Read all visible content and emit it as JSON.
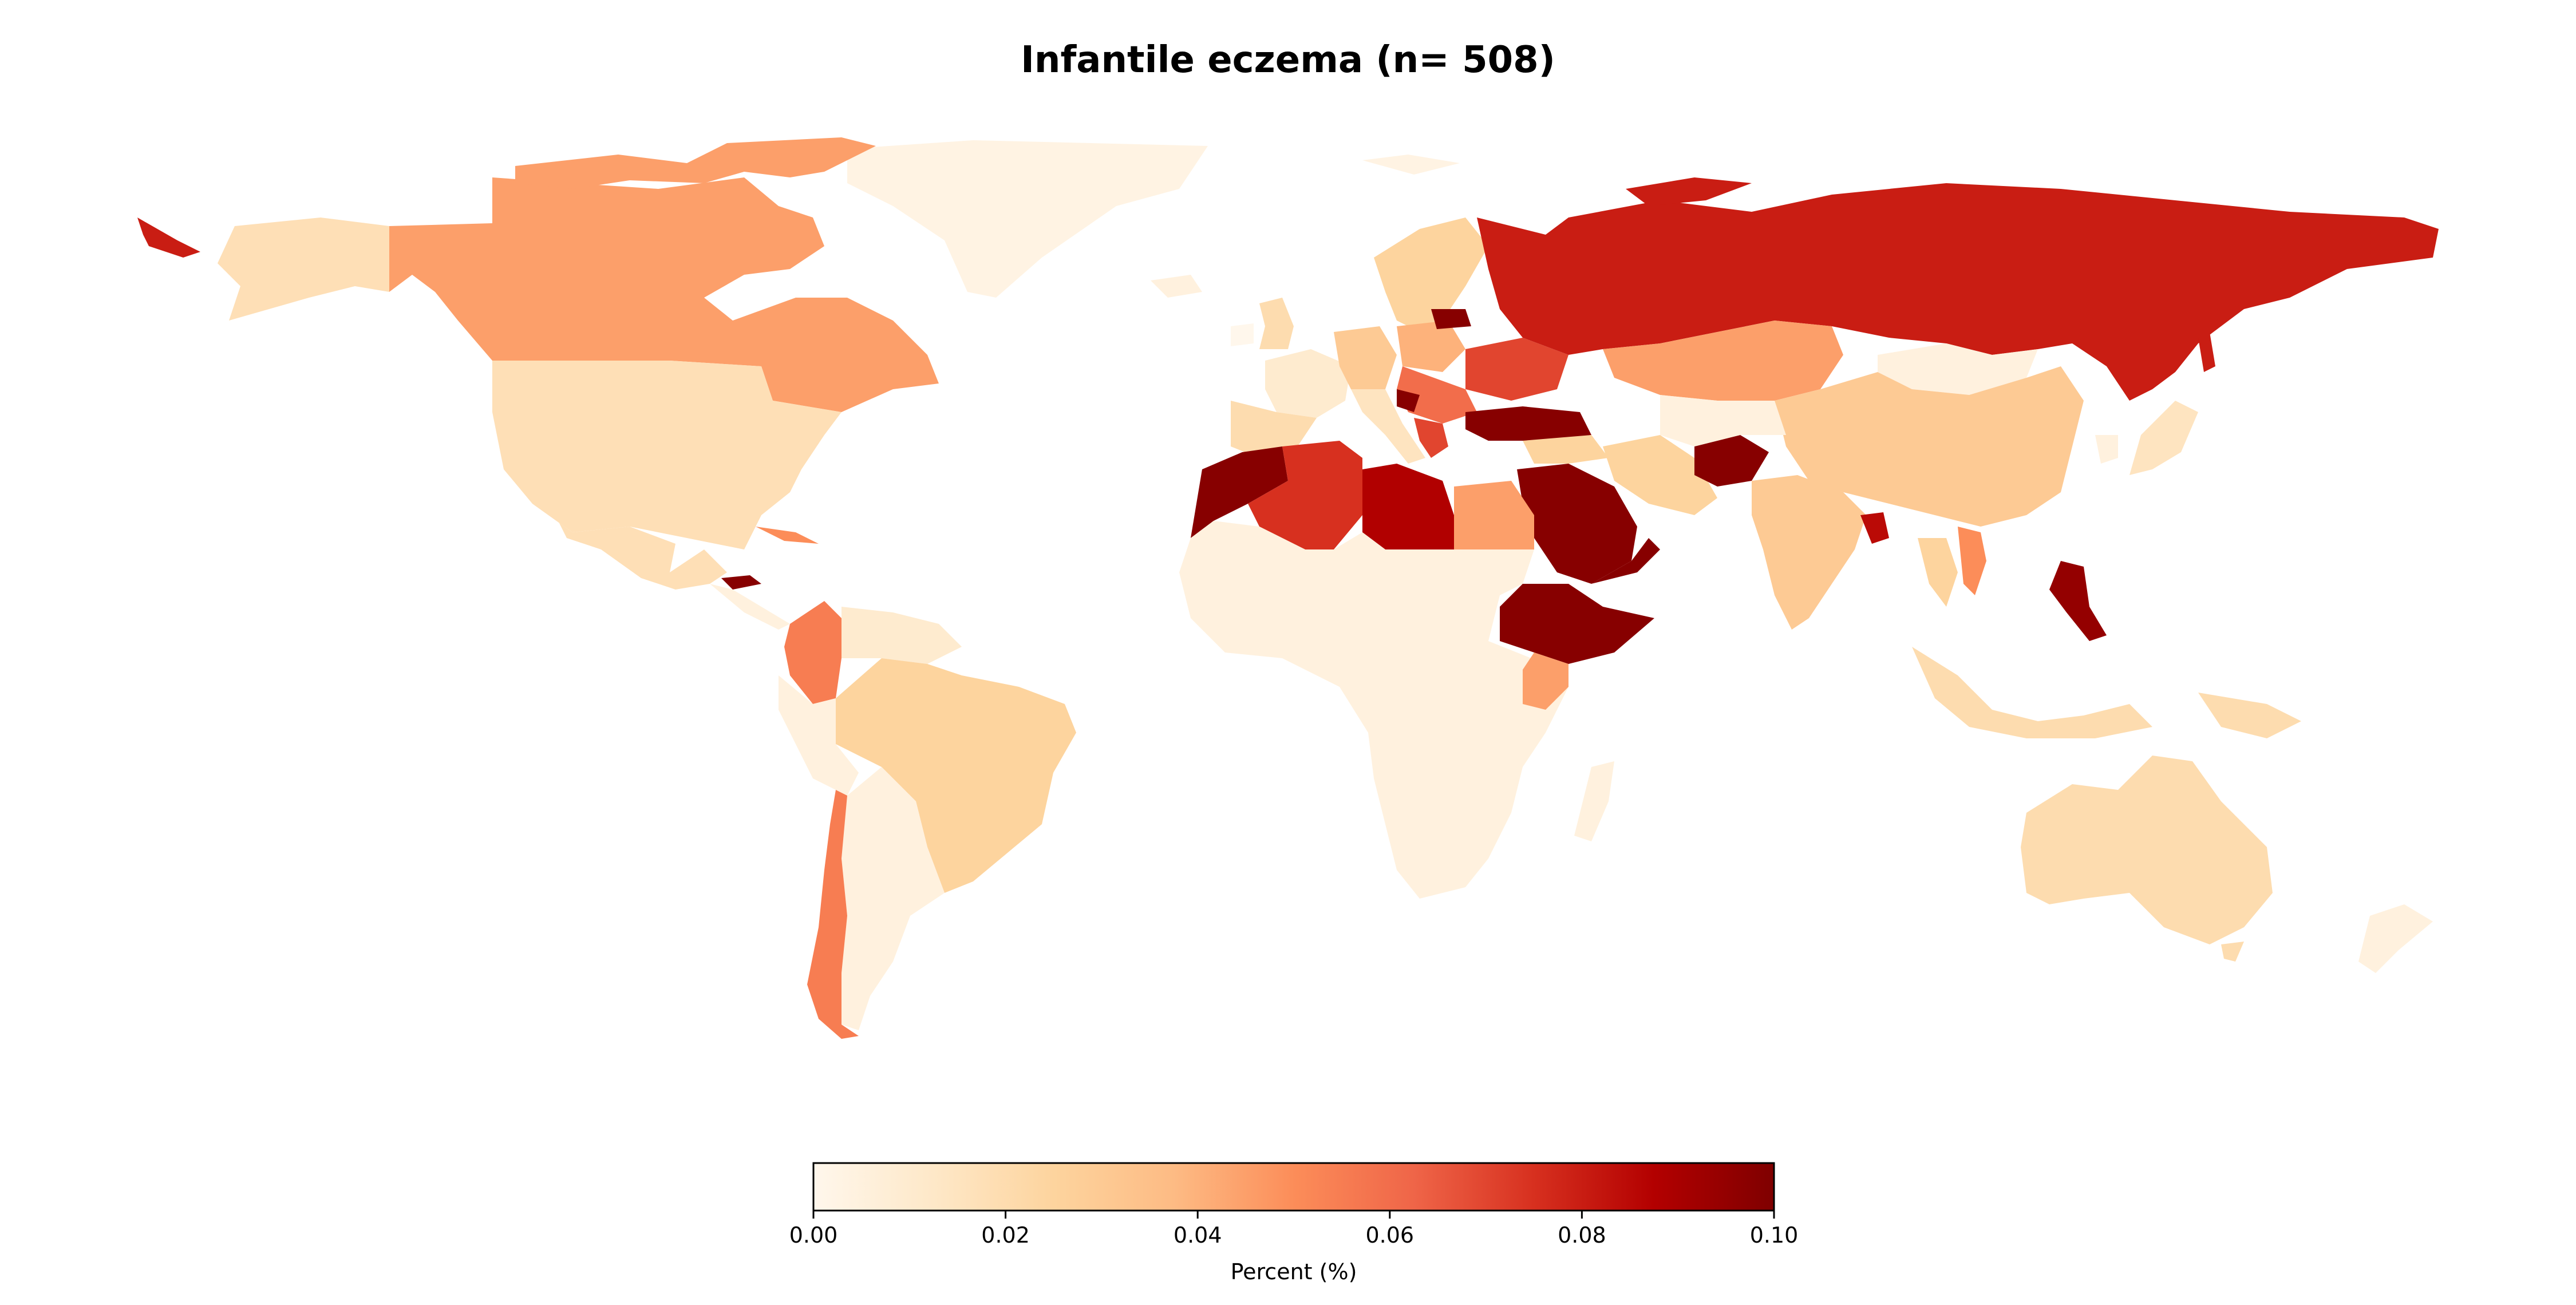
{
  "title": "Infantile eczema (n= 508)",
  "colorbar": {
    "label": "Percent (%)",
    "min": 0.0,
    "max": 0.1,
    "ticks": [
      "0.00",
      "0.02",
      "0.04",
      "0.06",
      "0.08",
      "0.10"
    ],
    "colormap": "OrRd",
    "stops": [
      "#fff7ec",
      "#fee8c8",
      "#fdd49e",
      "#fdbb84",
      "#fc8d59",
      "#ef6548",
      "#d7301f",
      "#b30000",
      "#7f0000"
    ]
  },
  "chart_data": {
    "type": "choropleth",
    "title": "Infantile eczema (n= 508)",
    "value_label": "Percent (%)",
    "range": [
      0.0,
      0.1
    ],
    "regions": [
      {
        "name": "Russia",
        "value": 0.08
      },
      {
        "name": "Canada",
        "value": 0.045
      },
      {
        "name": "United States",
        "value": 0.018
      },
      {
        "name": "Greenland",
        "value": 0.003
      },
      {
        "name": "Mexico",
        "value": 0.018
      },
      {
        "name": "Cuba",
        "value": 0.05
      },
      {
        "name": "Honduras",
        "value": 0.098
      },
      {
        "name": "Colombia",
        "value": 0.055
      },
      {
        "name": "Venezuela",
        "value": 0.01
      },
      {
        "name": "Brazil",
        "value": 0.025
      },
      {
        "name": "Peru",
        "value": 0.005
      },
      {
        "name": "Chile",
        "value": 0.055
      },
      {
        "name": "Argentina",
        "value": 0.005
      },
      {
        "name": "Morocco",
        "value": 0.098
      },
      {
        "name": "Algeria",
        "value": 0.075
      },
      {
        "name": "Libya",
        "value": 0.088
      },
      {
        "name": "Egypt",
        "value": 0.045
      },
      {
        "name": "Ethiopia",
        "value": 0.098
      },
      {
        "name": "Kenya",
        "value": 0.045
      },
      {
        "name": "Africa (other)",
        "value": 0.005
      },
      {
        "name": "Madagascar",
        "value": 0.005
      },
      {
        "name": "Saudi Arabia",
        "value": 0.098
      },
      {
        "name": "Turkey",
        "value": 0.098
      },
      {
        "name": "Afghanistan",
        "value": 0.098
      },
      {
        "name": "Iran",
        "value": 0.025
      },
      {
        "name": "Kazakhstan",
        "value": 0.045
      },
      {
        "name": "Mongolia",
        "value": 0.005
      },
      {
        "name": "China",
        "value": 0.03
      },
      {
        "name": "India",
        "value": 0.03
      },
      {
        "name": "Bangladesh",
        "value": 0.085
      },
      {
        "name": "Vietnam",
        "value": 0.05
      },
      {
        "name": "Thailand",
        "value": 0.025
      },
      {
        "name": "Philippines",
        "value": 0.095
      },
      {
        "name": "Indonesia",
        "value": 0.02
      },
      {
        "name": "Japan",
        "value": 0.015
      },
      {
        "name": "South Korea",
        "value": 0.005
      },
      {
        "name": "Australia",
        "value": 0.02
      },
      {
        "name": "New Zealand",
        "value": 0.005
      },
      {
        "name": "United Kingdom",
        "value": 0.02
      },
      {
        "name": "France",
        "value": 0.01
      },
      {
        "name": "Spain",
        "value": 0.02
      },
      {
        "name": "Germany",
        "value": 0.03
      },
      {
        "name": "Poland",
        "value": 0.04
      },
      {
        "name": "Ukraine",
        "value": 0.07
      },
      {
        "name": "Romania",
        "value": 0.06
      },
      {
        "name": "Italy",
        "value": 0.015
      },
      {
        "name": "Greece",
        "value": 0.07
      },
      {
        "name": "Scandinavia",
        "value": 0.025
      }
    ]
  }
}
